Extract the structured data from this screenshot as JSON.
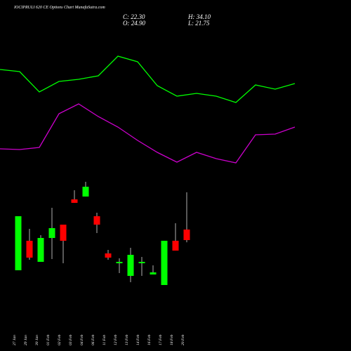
{
  "chart_data": {
    "type": "candlestick",
    "title": "IOCIPRULI 620 CE Options Chart MunafaSutra.com",
    "ohlc": {
      "close": {
        "value": 22.3,
        "label": "C: 22.30"
      },
      "open": {
        "value": 24.9,
        "label": "O: 24.90"
      },
      "high": {
        "value": 34.1,
        "label": "H: 34.10"
      },
      "low": {
        "value": 21.75,
        "label": "L: 21.75"
      }
    },
    "categories": [
      "27 Jan",
      "29 Jan",
      "30 Jan",
      "01 Feb",
      "02 Feb",
      "03 Feb",
      "04 Feb",
      "06 Feb",
      "11 Feb",
      "12 Feb",
      "13 Feb",
      "14 Feb",
      "16 Feb",
      "17 Feb",
      "18 Feb",
      "20 Feb"
    ],
    "open": [
      14.85,
      22.13,
      16.93,
      22.82,
      26.11,
      32.35,
      33.05,
      28.19,
      19.01,
      16.58,
      13.46,
      16.58,
      13.81,
      11.21,
      22.13,
      24.9
    ],
    "high": [
      28.19,
      25.07,
      23.51,
      30.27,
      26.11,
      34.6,
      36.68,
      29.06,
      19.87,
      17.79,
      20.39,
      18.14,
      16.06,
      22.13,
      26.46,
      34.1
    ],
    "low": [
      14.85,
      17.45,
      16.93,
      17.62,
      16.58,
      31.49,
      33.05,
      24.03,
      17.45,
      14.16,
      11.9,
      13.46,
      13.81,
      11.21,
      19.7,
      21.75
    ],
    "close": [
      28.19,
      17.97,
      22.82,
      25.25,
      22.13,
      31.49,
      35.47,
      26.11,
      17.97,
      16.93,
      18.66,
      16.93,
      14.33,
      22.13,
      19.7,
      22.3
    ],
    "up_color": "#00ff00",
    "down_color": "#ff0000",
    "lines": [
      {
        "color": "#00ff00",
        "values": [
          401,
          398,
          369,
          384,
          387,
          392,
          420,
          412,
          378,
          363,
          367,
          363,
          354,
          379,
          373,
          381
        ]
      },
      {
        "color": "#cc00cc",
        "values": [
          288,
          287,
          290,
          338,
          352,
          334,
          319,
          300,
          283,
          269,
          283,
          274,
          268,
          308,
          309,
          319
        ]
      }
    ]
  }
}
